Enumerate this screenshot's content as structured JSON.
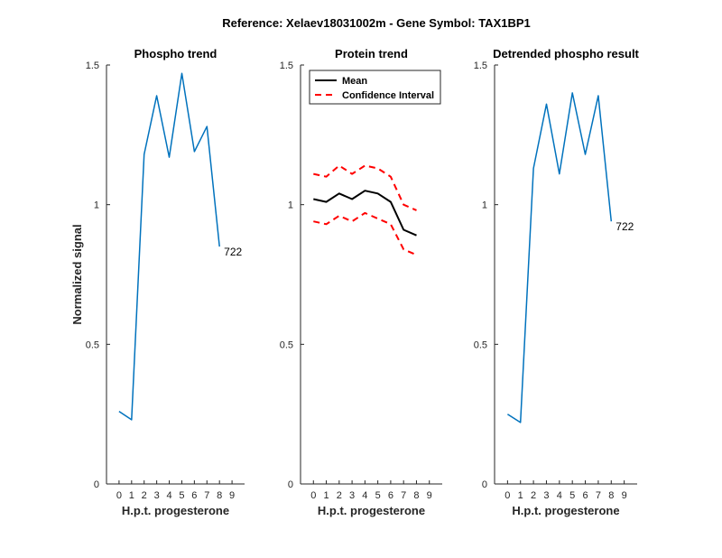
{
  "figure_title": "Reference:  Xelaev18031002m - Gene Symbol:  TAX1BP1",
  "colors": {
    "phospho": "#0072BD",
    "mean": "#000000",
    "ci": "#FF0000",
    "axis": "#262626"
  },
  "chart_data": [
    {
      "type": "line",
      "title": "Phospho trend",
      "xlabel": "H.p.t. progesterone",
      "ylabel": "Normalized signal",
      "xlim": [
        -1,
        10
      ],
      "ylim": [
        0,
        1.5
      ],
      "xticks": [
        "0",
        "1",
        "2",
        "3",
        "4",
        "5",
        "6",
        "7",
        "8",
        "9"
      ],
      "yticks": [
        "0",
        "0.5",
        "1",
        "1.5"
      ],
      "series": [
        {
          "x": [
            0,
            1,
            2,
            3,
            4,
            5,
            6,
            7,
            8,
            9
          ],
          "values": [
            0.26,
            0.23,
            1.18,
            1.39,
            1.17,
            1.47,
            1.19,
            1.28,
            0.85,
            null
          ],
          "x_actual": [
            0,
            1,
            2,
            3,
            4,
            5,
            6,
            7,
            8
          ],
          "y_actual": [
            0.26,
            0.23,
            1.18,
            1.39,
            1.17,
            1.47,
            1.19,
            1.28,
            0.85
          ]
        }
      ],
      "annotation": {
        "text": "722",
        "x": 8,
        "y": 0.85
      }
    },
    {
      "type": "line",
      "title": "Protein trend",
      "xlabel": "H.p.t. progesterone",
      "xlim": [
        -1,
        10
      ],
      "ylim": [
        0,
        1.5
      ],
      "xticks": [
        "0",
        "1",
        "2",
        "3",
        "4",
        "5",
        "6",
        "7",
        "8",
        "9"
      ],
      "yticks": [
        "0",
        "0.5",
        "1",
        "1.5"
      ],
      "legend": {
        "position": "top-left",
        "entries": [
          "Mean",
          "Confidence Interval"
        ]
      },
      "series": [
        {
          "name": "Mean",
          "style": "solid",
          "x": [
            0,
            1,
            2,
            3,
            4,
            5,
            6,
            7,
            8,
            9
          ],
          "values": [
            1.02,
            1.01,
            1.04,
            1.02,
            1.05,
            1.04,
            1.01,
            0.91,
            0.89,
            null
          ],
          "x_actual": [
            0,
            1,
            2,
            3,
            4,
            5,
            6,
            7,
            8
          ]
        },
        {
          "name": "Confidence Interval",
          "style": "dashed",
          "x": [
            0,
            1,
            2,
            3,
            4,
            5,
            6,
            7,
            8
          ],
          "values": [
            1.11,
            1.1,
            1.14,
            1.11,
            1.14,
            1.13,
            1.1,
            1.0,
            0.98
          ]
        },
        {
          "name": "Confidence Interval",
          "style": "dashed",
          "x": [
            0,
            1,
            2,
            3,
            4,
            5,
            6,
            7,
            8
          ],
          "values": [
            0.94,
            0.93,
            0.96,
            0.94,
            0.97,
            0.95,
            0.93,
            0.84,
            0.82
          ]
        }
      ]
    },
    {
      "type": "line",
      "title": "Detrended phospho result",
      "xlabel": "H.p.t. progesterone",
      "xlim": [
        -1,
        10
      ],
      "ylim": [
        0,
        1.5
      ],
      "xticks": [
        "0",
        "1",
        "2",
        "3",
        "4",
        "5",
        "6",
        "7",
        "8",
        "9"
      ],
      "yticks": [
        "0",
        "0.5",
        "1",
        "1.5"
      ],
      "series": [
        {
          "x": [
            0,
            1,
            2,
            3,
            4,
            5,
            6,
            7,
            8
          ],
          "values": [
            0.25,
            0.22,
            1.13,
            1.36,
            1.11,
            1.4,
            1.18,
            1.39,
            0.94
          ]
        }
      ],
      "annotation": {
        "text": "722",
        "x": 8,
        "y": 0.94
      }
    }
  ]
}
